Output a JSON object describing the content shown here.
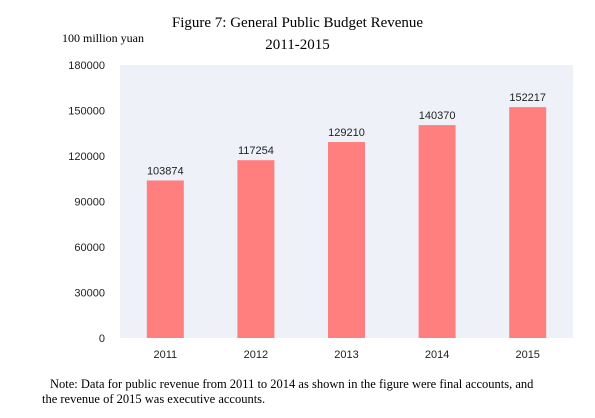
{
  "chart_data": {
    "type": "bar",
    "title": "Figure 7: General Public Budget Revenue",
    "subtitle": "2011-2015",
    "ylabel": "100 million yuan",
    "xlabel": "",
    "categories": [
      "2011",
      "2012",
      "2013",
      "2014",
      "2015"
    ],
    "values": [
      103874,
      117254,
      129210,
      140370,
      152217
    ],
    "data_labels": [
      "103874",
      "117254",
      "129210",
      "140370",
      "152217"
    ],
    "ylim": [
      0,
      180000
    ],
    "yticks": [
      0,
      30000,
      60000,
      90000,
      120000,
      150000,
      180000
    ],
    "ytick_labels": [
      "0",
      "30000",
      "60000",
      "90000",
      "120000",
      "150000",
      "180000"
    ],
    "grid": false,
    "legend": "none",
    "colors": {
      "bar": "#FF7F7F",
      "plot_background": "#EEF2F8"
    }
  },
  "note": {
    "line1": "Note: Data for public revenue from 2011 to 2014 as shown in the figure were final accounts, and",
    "line2": "the revenue of 2015 was executive accounts."
  }
}
